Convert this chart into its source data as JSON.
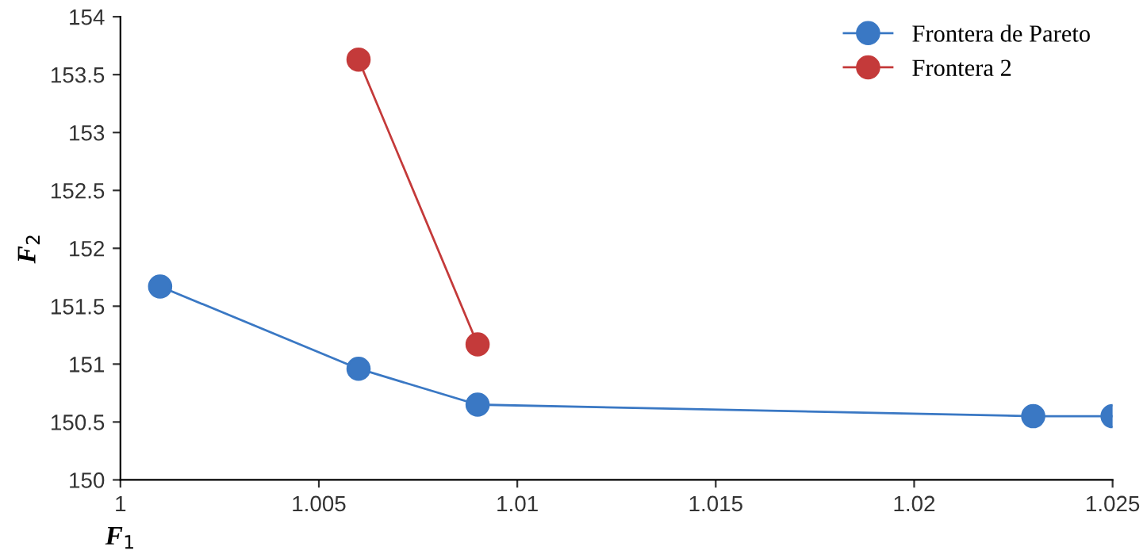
{
  "chart_data": {
    "type": "line",
    "xlabel": "F$_{1}$",
    "ylabel": "F$_{2}$",
    "series": [
      {
        "name": "Frontera de Pareto",
        "color": "#3a78c4",
        "x": [
          1.001,
          1.006,
          1.009,
          1.023,
          1.025
        ],
        "values": [
          151.67,
          150.96,
          150.65,
          150.55,
          150.55
        ]
      },
      {
        "name": "Frontera 2",
        "color": "#c43a3a",
        "x": [
          1.006,
          1.009
        ],
        "values": [
          153.63,
          151.17
        ]
      }
    ],
    "xlim": [
      1,
      1.025
    ],
    "xticks": [
      1,
      1.005,
      1.01,
      1.015,
      1.02,
      1.025
    ],
    "ylim": [
      150,
      154
    ],
    "yticks": [
      150,
      150.5,
      151,
      151.5,
      152,
      152.5,
      153,
      153.5,
      154
    ],
    "grid": false,
    "legend": "top right",
    "marker": "circle",
    "line_style": "solid"
  }
}
